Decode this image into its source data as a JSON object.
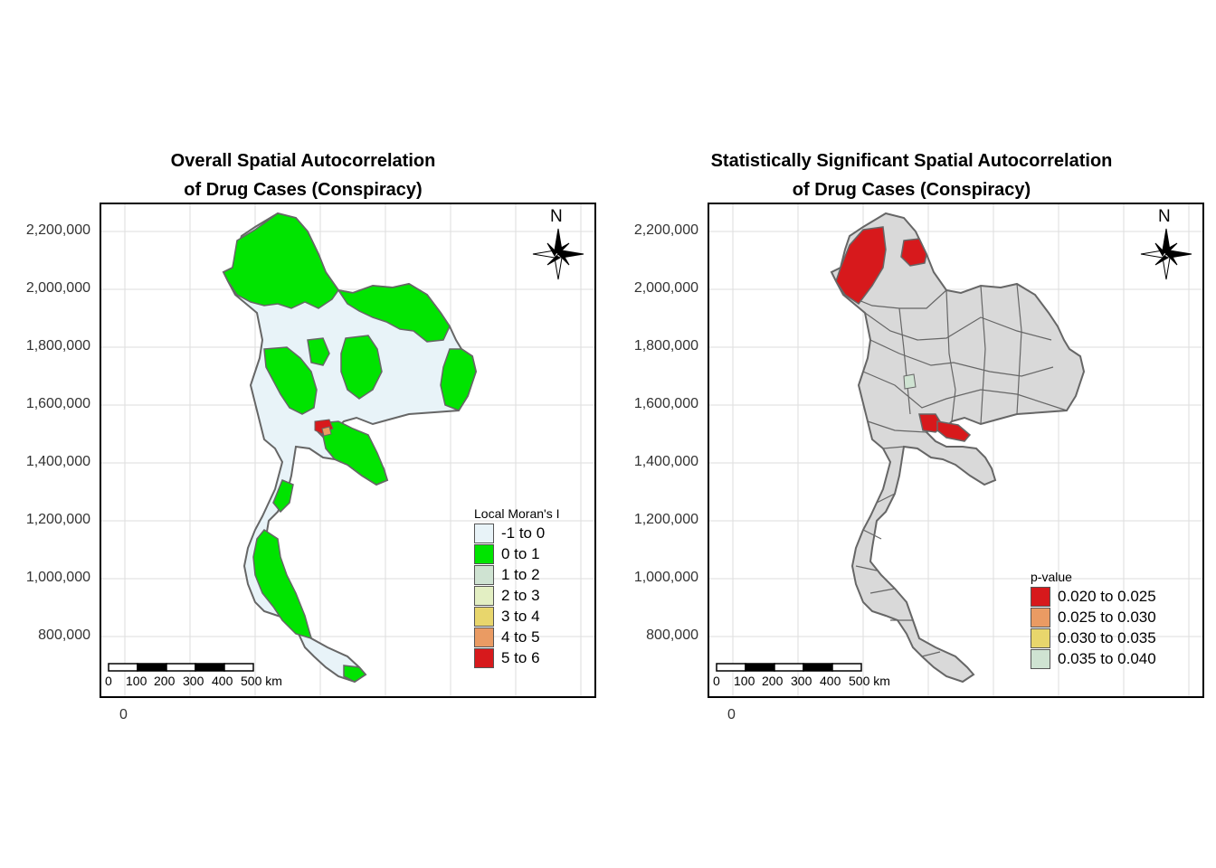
{
  "left": {
    "title_line1": "Overall Spatial Autocorrelation",
    "title_line2": "of Drug Cases (Conspiracy)",
    "legend_title": "Local Moran's I",
    "legend": [
      {
        "label": "-1 to 0",
        "color": "#e8f3f8"
      },
      {
        "label": "0 to 1",
        "color": "#00e400"
      },
      {
        "label": "1 to 2",
        "color": "#cfe3d2"
      },
      {
        "label": "2 to 3",
        "color": "#e3efc3"
      },
      {
        "label": "3 to 4",
        "color": "#e8d66c"
      },
      {
        "label": "4 to 5",
        "color": "#ea9b63"
      },
      {
        "label": "5 to 6",
        "color": "#d7191c"
      }
    ]
  },
  "right": {
    "title_line1": "Statistically Significant Spatial Autocorrelation",
    "title_line2": "of Drug Cases (Conspiracy)",
    "legend_title": "p-value",
    "legend": [
      {
        "label": "0.020 to 0.025",
        "color": "#d7191c"
      },
      {
        "label": "0.025 to 0.030",
        "color": "#ea9b63"
      },
      {
        "label": "0.030 to 0.035",
        "color": "#e8d66c"
      },
      {
        "label": "0.035 to 0.040",
        "color": "#cfe3d2"
      }
    ]
  },
  "y_ticks": [
    "2,200,000",
    "2,000,000",
    "1,800,000",
    "1,600,000",
    "1,400,000",
    "1,200,000",
    "1,000,000",
    "800,000"
  ],
  "x_tick": "0",
  "scale_bar": [
    "0",
    "100",
    "200",
    "300",
    "400",
    "500 km"
  ],
  "north_label": "N",
  "colors": {
    "grey_fill": "#d9d9d9",
    "border": "#666666",
    "grid": "#dddddd"
  }
}
